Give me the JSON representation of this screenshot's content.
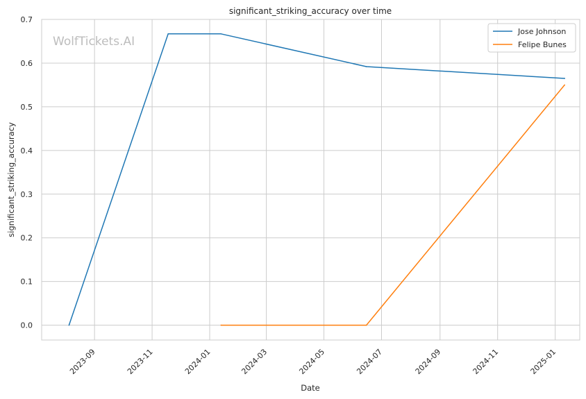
{
  "chart_data": {
    "type": "line",
    "title": "significant_striking_accuracy over time",
    "xlabel": "Date",
    "ylabel": "significant_striking_accuracy",
    "watermark": "WolfTickets.AI",
    "ylim": [
      -0.034,
      0.7
    ],
    "xlim": [
      "2023-07-07",
      "2025-01-27"
    ],
    "x_ticks": [
      "2023-09",
      "2023-11",
      "2024-01",
      "2024-03",
      "2024-05",
      "2024-07",
      "2024-09",
      "2024-11",
      "2025-01"
    ],
    "y_ticks": [
      "0.0",
      "0.1",
      "0.2",
      "0.3",
      "0.4",
      "0.5",
      "0.6",
      "0.7"
    ],
    "grid": true,
    "legend_position": "top-right",
    "series": [
      {
        "name": "Jose Johnson",
        "color": "#1f77b4",
        "x": [
          "2023-08-05",
          "2023-11-18",
          "2024-01-13",
          "2024-06-15",
          "2025-01-11"
        ],
        "y": [
          0.0,
          0.667,
          0.667,
          0.592,
          0.565
        ]
      },
      {
        "name": "Felipe Bunes",
        "color": "#ff7f0e",
        "x": [
          "2024-01-13",
          "2024-06-15",
          "2025-01-11"
        ],
        "y": [
          0.0,
          0.0,
          0.55
        ]
      }
    ]
  }
}
